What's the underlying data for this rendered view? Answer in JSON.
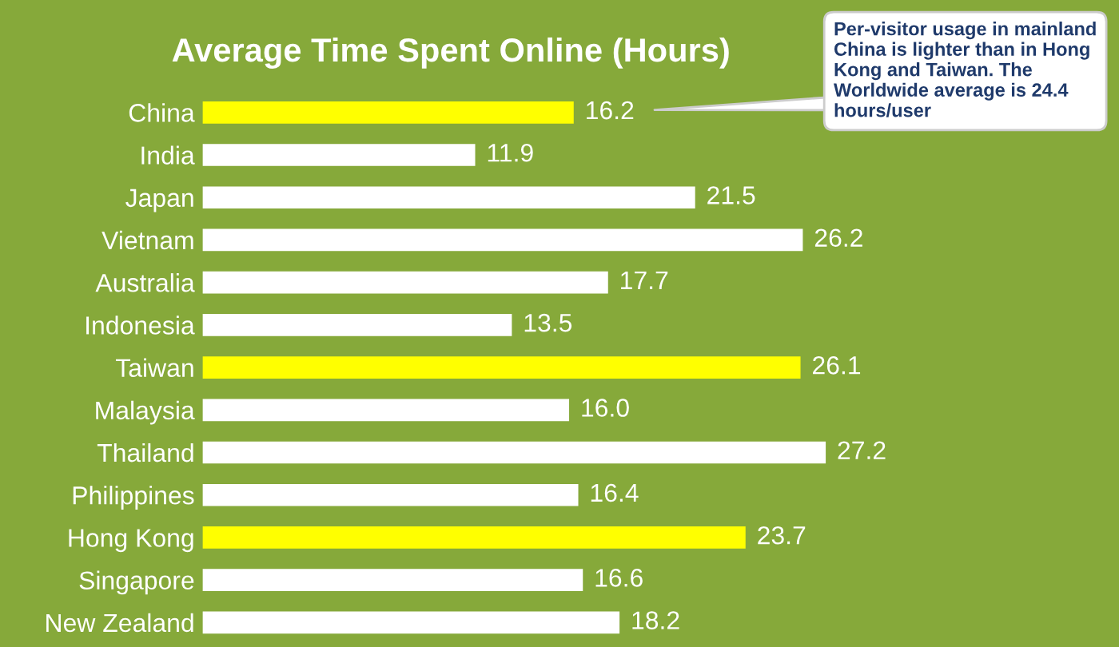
{
  "chart_data": {
    "type": "bar",
    "orientation": "horizontal",
    "title": "Average Time Spent Online (Hours)",
    "categories": [
      "China",
      "India",
      "Japan",
      "Vietnam",
      "Australia",
      "Indonesia",
      "Taiwan",
      "Malaysia",
      "Thailand",
      "Philippines",
      "Hong Kong",
      "Singapore",
      "New Zealand"
    ],
    "values": [
      16.2,
      11.9,
      21.5,
      26.2,
      17.7,
      13.5,
      26.1,
      16.0,
      27.2,
      16.4,
      23.7,
      16.6,
      18.2
    ],
    "value_labels": [
      "16.2",
      "11.9",
      "21.5",
      "26.2",
      "17.7",
      "13.5",
      "26.1",
      "16.0",
      "27.2",
      "16.4",
      "23.7",
      "16.6",
      "18.2"
    ],
    "colors": [
      "#ffff00",
      "#ffffff",
      "#ffffff",
      "#ffffff",
      "#ffffff",
      "#ffffff",
      "#ffff00",
      "#ffffff",
      "#ffffff",
      "#ffffff",
      "#ffff00",
      "#ffffff",
      "#ffffff"
    ],
    "xlim": [
      0,
      40
    ],
    "tick_labels": "y",
    "grid": false,
    "legend": false,
    "annotations": [
      "Per-visitor usage in mainland China is lighter than in Hong Kong and Taiwan. The Worldwide average is 24.4 hours/user"
    ]
  }
}
